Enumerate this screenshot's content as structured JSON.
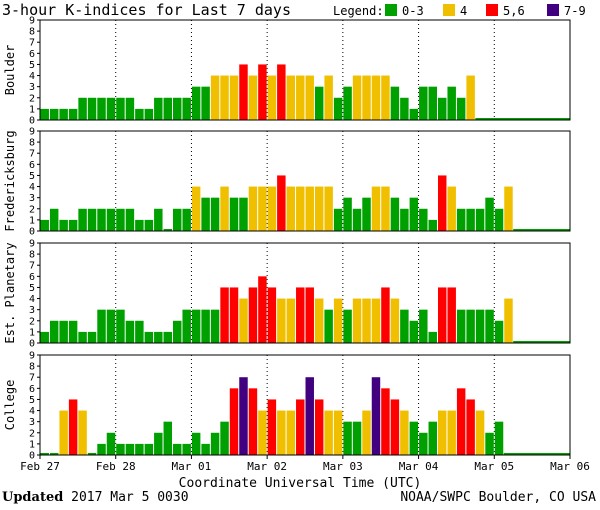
{
  "title": "3-hour K-indices for Last 7 days",
  "legend": {
    "label": "Legend:",
    "items": [
      {
        "label": "0-3",
        "color": "#00a000"
      },
      {
        "label": "4",
        "color": "#f0c000"
      },
      {
        "label": "5,6",
        "color": "#ff0000"
      },
      {
        "label": "7-9",
        "color": "#400080"
      }
    ]
  },
  "footer": {
    "updated_label": "Updated",
    "updated_value": "2017 Mar  5 0030",
    "source": "NOAA/SWPC Boulder, CO USA"
  },
  "chart_data": {
    "type": "bar",
    "xlabel": "Coordinate Universal Time (UTC)",
    "x_tick_labels": [
      "Feb 27",
      "Feb 28",
      "Mar 01",
      "Mar 02",
      "Mar 03",
      "Mar 04",
      "Mar 05",
      "Mar 06"
    ],
    "y_tick_labels": [
      "0",
      "1",
      "2",
      "3",
      "4",
      "5",
      "6",
      "7",
      "8",
      "9"
    ],
    "ylim": [
      0,
      9
    ],
    "intervals_per_day": 8,
    "color_scale": [
      {
        "range": "0-3",
        "color": "#00a000"
      },
      {
        "range": "4",
        "color": "#f0c000"
      },
      {
        "range": "5-6",
        "color": "#ff0000"
      },
      {
        "range": "7-9",
        "color": "#400080"
      }
    ],
    "series": [
      {
        "name": "Boulder",
        "values": [
          1,
          1,
          1,
          1,
          2,
          2,
          2,
          2,
          2,
          2,
          1,
          1,
          2,
          2,
          2,
          2,
          3,
          3,
          4,
          4,
          4,
          5,
          4,
          5,
          4,
          5,
          4,
          4,
          4,
          3,
          4,
          2,
          3,
          4,
          4,
          4,
          4,
          3,
          2,
          1,
          3,
          3,
          2,
          3,
          2,
          4
        ]
      },
      {
        "name": "Fredericksburg",
        "values": [
          1,
          2,
          1,
          1,
          2,
          2,
          2,
          2,
          2,
          2,
          1,
          1,
          2,
          0,
          2,
          2,
          4,
          3,
          3,
          4,
          3,
          3,
          4,
          4,
          4,
          5,
          4,
          4,
          4,
          4,
          4,
          2,
          3,
          2,
          3,
          4,
          4,
          3,
          2,
          3,
          2,
          1,
          5,
          4,
          2,
          2,
          2,
          3,
          2,
          4
        ]
      },
      {
        "name": "Est. Planetary",
        "values": [
          1,
          2,
          2,
          2,
          1,
          1,
          3,
          3,
          3,
          2,
          2,
          1,
          1,
          1,
          2,
          3,
          3,
          3,
          3,
          5,
          5,
          4,
          5,
          6,
          5,
          4,
          4,
          5,
          5,
          4,
          3,
          4,
          3,
          4,
          4,
          4,
          5,
          4,
          3,
          2,
          3,
          1,
          5,
          5,
          3,
          3,
          3,
          3,
          2,
          4
        ]
      },
      {
        "name": "College",
        "values": [
          0,
          0,
          4,
          5,
          4,
          0,
          1,
          2,
          1,
          1,
          1,
          1,
          2,
          3,
          1,
          1,
          2,
          1,
          2,
          3,
          6,
          7,
          6,
          4,
          5,
          4,
          4,
          5,
          7,
          5,
          4,
          4,
          3,
          3,
          4,
          7,
          6,
          5,
          4,
          3,
          2,
          3,
          4,
          4,
          6,
          5,
          4,
          2,
          3
        ]
      }
    ]
  }
}
